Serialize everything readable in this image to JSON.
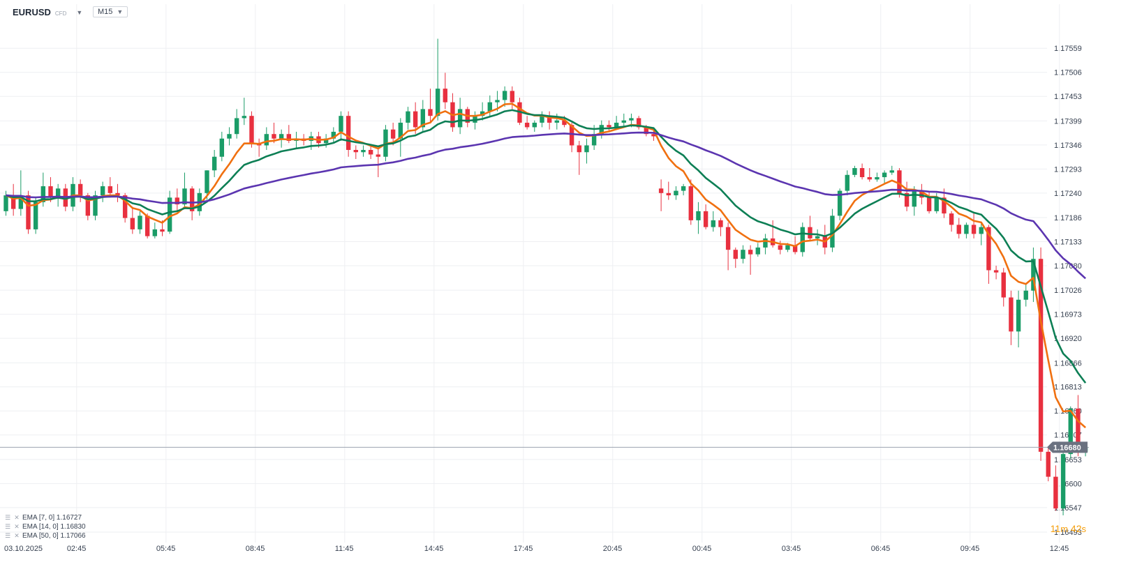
{
  "toolbar": {
    "symbol": "EURUSD",
    "symbol_type": "CFD",
    "timeframe": "M15"
  },
  "timer": {
    "minutes": "11",
    "min_unit": "m",
    "seconds": "42",
    "sec_unit": "s"
  },
  "colors": {
    "up": "#1a9c67",
    "down": "#e8303f",
    "ema7": "#f07010",
    "ema14": "#0d7f55",
    "ema50": "#5b35b0",
    "price_tag": "#6b7280"
  },
  "legend": [
    {
      "label": "EMA [7, 0] 1.16727"
    },
    {
      "label": "EMA [14, 0] 1.16830"
    },
    {
      "label": "EMA [50, 0] 1.17066"
    }
  ],
  "chart_data": {
    "type": "candlestick",
    "title": "",
    "xlabel": "",
    "ylabel": "",
    "ylim": [
      1.1647,
      1.1761
    ],
    "y_ticks": [
      1.16493,
      1.16547,
      1.166,
      1.16653,
      1.16707,
      1.1676,
      1.16813,
      1.16866,
      1.1692,
      1.16973,
      1.17026,
      1.1708,
      1.17133,
      1.17186,
      1.1724,
      1.17293,
      1.17346,
      1.17399,
      1.17453,
      1.17506,
      1.17559
    ],
    "x_ticks": [
      {
        "label": "03.10.2025",
        "i": -0.3
      },
      {
        "label": "02:45",
        "i": 9.5
      },
      {
        "label": "05:45",
        "i": 21.5
      },
      {
        "label": "08:45",
        "i": 33.5
      },
      {
        "label": "11:45",
        "i": 45.5
      },
      {
        "label": "14:45",
        "i": 57.5
      },
      {
        "label": "17:45",
        "i": 69.5
      },
      {
        "label": "20:45",
        "i": 81.5
      },
      {
        "label": "00:45",
        "i": 93.5
      },
      {
        "label": "03:45",
        "i": 105.5
      },
      {
        "label": "06:45",
        "i": 117.5
      },
      {
        "label": "09:45",
        "i": 129.5
      },
      {
        "label": "12:45",
        "i": 141.5
      }
    ],
    "last_price": 1.1668,
    "grid": true,
    "candles": [
      [
        1.172,
        1.17245,
        1.1719,
        1.17235
      ],
      [
        1.17235,
        1.1726,
        1.1719,
        1.17205
      ],
      [
        1.17205,
        1.1729,
        1.1719,
        1.17235
      ],
      [
        1.17235,
        1.17245,
        1.1715,
        1.1716
      ],
      [
        1.1716,
        1.1723,
        1.1715,
        1.1722
      ],
      [
        1.1722,
        1.17285,
        1.1721,
        1.17255
      ],
      [
        1.17255,
        1.17275,
        1.1722,
        1.1723
      ],
      [
        1.1723,
        1.1726,
        1.1721,
        1.1725
      ],
      [
        1.1725,
        1.1726,
        1.172,
        1.1721
      ],
      [
        1.1721,
        1.17275,
        1.172,
        1.1726
      ],
      [
        1.1726,
        1.1727,
        1.1722,
        1.17235
      ],
      [
        1.17235,
        1.1724,
        1.1718,
        1.1719
      ],
      [
        1.1719,
        1.17245,
        1.1718,
        1.17235
      ],
      [
        1.17235,
        1.17265,
        1.1722,
        1.17255
      ],
      [
        1.17255,
        1.17275,
        1.1723,
        1.1724
      ],
      [
        1.1724,
        1.1726,
        1.1722,
        1.17235
      ],
      [
        1.17235,
        1.1724,
        1.17175,
        1.17185
      ],
      [
        1.17185,
        1.1721,
        1.1715,
        1.1716
      ],
      [
        1.1716,
        1.172,
        1.1715,
        1.1719
      ],
      [
        1.1719,
        1.17195,
        1.1714,
        1.17145
      ],
      [
        1.17145,
        1.17175,
        1.1714,
        1.1716
      ],
      [
        1.1716,
        1.1718,
        1.17145,
        1.17155
      ],
      [
        1.17155,
        1.17245,
        1.1715,
        1.1723
      ],
      [
        1.1723,
        1.1725,
        1.172,
        1.17215
      ],
      [
        1.17215,
        1.17285,
        1.1721,
        1.1725
      ],
      [
        1.1725,
        1.17255,
        1.1718,
        1.172
      ],
      [
        1.172,
        1.1725,
        1.1719,
        1.1724
      ],
      [
        1.1724,
        1.1729,
        1.17225,
        1.1729
      ],
      [
        1.1729,
        1.17335,
        1.17275,
        1.1732
      ],
      [
        1.1732,
        1.17375,
        1.1731,
        1.1736
      ],
      [
        1.1736,
        1.17385,
        1.17345,
        1.1737
      ],
      [
        1.1737,
        1.17425,
        1.1736,
        1.17405
      ],
      [
        1.17405,
        1.1745,
        1.1739,
        1.1741
      ],
      [
        1.1741,
        1.1742,
        1.1734,
        1.1735
      ],
      [
        1.1735,
        1.1736,
        1.1732,
        1.17345
      ],
      [
        1.17345,
        1.17385,
        1.17335,
        1.1737
      ],
      [
        1.1737,
        1.17395,
        1.1735,
        1.1736
      ],
      [
        1.1736,
        1.1738,
        1.1734,
        1.1737
      ],
      [
        1.1737,
        1.1739,
        1.1735,
        1.17355
      ],
      [
        1.17355,
        1.17375,
        1.1734,
        1.1736
      ],
      [
        1.1736,
        1.1737,
        1.17345,
        1.17355
      ],
      [
        1.17355,
        1.17375,
        1.17335,
        1.17365
      ],
      [
        1.17365,
        1.17375,
        1.1734,
        1.1735
      ],
      [
        1.1735,
        1.1737,
        1.1734,
        1.1736
      ],
      [
        1.1736,
        1.17385,
        1.1735,
        1.17375
      ],
      [
        1.17375,
        1.1742,
        1.17355,
        1.1741
      ],
      [
        1.1741,
        1.1742,
        1.1732,
        1.17335
      ],
      [
        1.17335,
        1.17345,
        1.17315,
        1.1733
      ],
      [
        1.1733,
        1.17345,
        1.1732,
        1.17335
      ],
      [
        1.17335,
        1.17345,
        1.17315,
        1.17325
      ],
      [
        1.17325,
        1.1734,
        1.17275,
        1.1732
      ],
      [
        1.1732,
        1.1739,
        1.1731,
        1.1738
      ],
      [
        1.1738,
        1.17395,
        1.17345,
        1.1736
      ],
      [
        1.1736,
        1.17405,
        1.1732,
        1.17395
      ],
      [
        1.17395,
        1.1743,
        1.1738,
        1.1742
      ],
      [
        1.1742,
        1.1744,
        1.1737,
        1.17385
      ],
      [
        1.17385,
        1.17445,
        1.17375,
        1.17425
      ],
      [
        1.17425,
        1.1747,
        1.17395,
        1.1741
      ],
      [
        1.1741,
        1.1758,
        1.174,
        1.1747
      ],
      [
        1.1747,
        1.17505,
        1.17425,
        1.1744
      ],
      [
        1.1744,
        1.1746,
        1.17375,
        1.17385
      ],
      [
        1.17385,
        1.1745,
        1.1737,
        1.17425
      ],
      [
        1.17425,
        1.1743,
        1.17385,
        1.17395
      ],
      [
        1.17395,
        1.1742,
        1.1738,
        1.1741
      ],
      [
        1.1741,
        1.1744,
        1.174,
        1.1742
      ],
      [
        1.1742,
        1.17455,
        1.1741,
        1.1744
      ],
      [
        1.1744,
        1.17465,
        1.1742,
        1.17445
      ],
      [
        1.17445,
        1.17475,
        1.1743,
        1.17465
      ],
      [
        1.17465,
        1.17475,
        1.17425,
        1.1744
      ],
      [
        1.1744,
        1.1745,
        1.1739,
        1.17395
      ],
      [
        1.17395,
        1.1741,
        1.1738,
        1.17385
      ],
      [
        1.17385,
        1.174,
        1.17375,
        1.17395
      ],
      [
        1.17395,
        1.1742,
        1.17385,
        1.1741
      ],
      [
        1.1741,
        1.1742,
        1.1738,
        1.17395
      ],
      [
        1.17395,
        1.17415,
        1.1738,
        1.174
      ],
      [
        1.174,
        1.1741,
        1.17385,
        1.1739
      ],
      [
        1.1739,
        1.17395,
        1.1733,
        1.17345
      ],
      [
        1.17345,
        1.17355,
        1.1728,
        1.1733
      ],
      [
        1.1733,
        1.1736,
        1.17305,
        1.17345
      ],
      [
        1.17345,
        1.1739,
        1.17335,
        1.1737
      ],
      [
        1.1737,
        1.174,
        1.1736,
        1.1739
      ],
      [
        1.1739,
        1.174,
        1.17375,
        1.17385
      ],
      [
        1.17385,
        1.1741,
        1.1738,
        1.17395
      ],
      [
        1.17395,
        1.17415,
        1.17385,
        1.174
      ],
      [
        1.174,
        1.17415,
        1.17385,
        1.17405
      ],
      [
        1.17405,
        1.1741,
        1.1738,
        1.17385
      ],
      [
        1.17385,
        1.1739,
        1.17365,
        1.1737
      ],
      [
        1.1737,
        1.1738,
        1.17355,
        1.17365
      ],
      [
        1.1725,
        1.1727,
        1.172,
        1.1724
      ],
      [
        1.1724,
        1.17265,
        1.17225,
        1.17235
      ],
      [
        1.17235,
        1.17255,
        1.17225,
        1.17245
      ],
      [
        1.17245,
        1.1726,
        1.17235,
        1.17255
      ],
      [
        1.17255,
        1.1727,
        1.1717,
        1.1718
      ],
      [
        1.1718,
        1.1722,
        1.1715,
        1.172
      ],
      [
        1.172,
        1.17215,
        1.1716,
        1.17165
      ],
      [
        1.17165,
        1.172,
        1.17155,
        1.1718
      ],
      [
        1.1718,
        1.17185,
        1.17145,
        1.17165
      ],
      [
        1.17165,
        1.17175,
        1.1707,
        1.17115
      ],
      [
        1.17115,
        1.1712,
        1.17075,
        1.17095
      ],
      [
        1.17095,
        1.17125,
        1.17085,
        1.17115
      ],
      [
        1.17115,
        1.17125,
        1.1706,
        1.17105
      ],
      [
        1.17105,
        1.1713,
        1.171,
        1.1712
      ],
      [
        1.1712,
        1.1715,
        1.17105,
        1.1714
      ],
      [
        1.1714,
        1.1718,
        1.1712,
        1.17125
      ],
      [
        1.17125,
        1.17135,
        1.17105,
        1.17115
      ],
      [
        1.17115,
        1.1713,
        1.1711,
        1.17125
      ],
      [
        1.17125,
        1.17145,
        1.17105,
        1.1711
      ],
      [
        1.1711,
        1.17175,
        1.171,
        1.17165
      ],
      [
        1.17165,
        1.1719,
        1.17135,
        1.1714
      ],
      [
        1.1714,
        1.1716,
        1.17125,
        1.17145
      ],
      [
        1.17145,
        1.1717,
        1.17105,
        1.1712
      ],
      [
        1.1712,
        1.17205,
        1.1711,
        1.1719
      ],
      [
        1.1719,
        1.1725,
        1.1718,
        1.17245
      ],
      [
        1.17245,
        1.1729,
        1.17235,
        1.1728
      ],
      [
        1.1728,
        1.173,
        1.17275,
        1.17295
      ],
      [
        1.17295,
        1.17305,
        1.1727,
        1.17275
      ],
      [
        1.17275,
        1.17295,
        1.17265,
        1.1727
      ],
      [
        1.1727,
        1.17285,
        1.17265,
        1.17275
      ],
      [
        1.17275,
        1.1729,
        1.1726,
        1.17285
      ],
      [
        1.17285,
        1.173,
        1.1728,
        1.1729
      ],
      [
        1.1729,
        1.17295,
        1.1723,
        1.1724
      ],
      [
        1.1724,
        1.17265,
        1.172,
        1.1721
      ],
      [
        1.1721,
        1.17255,
        1.1719,
        1.17245
      ],
      [
        1.17245,
        1.1726,
        1.17215,
        1.1723
      ],
      [
        1.1723,
        1.17245,
        1.17195,
        1.172
      ],
      [
        1.172,
        1.1724,
        1.17195,
        1.1723
      ],
      [
        1.1723,
        1.1725,
        1.17185,
        1.17195
      ],
      [
        1.17195,
        1.172,
        1.17155,
        1.1717
      ],
      [
        1.1717,
        1.17185,
        1.1714,
        1.1715
      ],
      [
        1.1715,
        1.17175,
        1.1714,
        1.1717
      ],
      [
        1.1717,
        1.17195,
        1.1714,
        1.1715
      ],
      [
        1.1715,
        1.17175,
        1.17125,
        1.17165
      ],
      [
        1.17165,
        1.1717,
        1.1704,
        1.1707
      ],
      [
        1.1707,
        1.1708,
        1.1705,
        1.17065
      ],
      [
        1.17065,
        1.17075,
        1.1699,
        1.1701
      ],
      [
        1.1701,
        1.17025,
        1.16905,
        1.16935
      ],
      [
        1.16935,
        1.17025,
        1.169,
        1.17005
      ],
      [
        1.17005,
        1.1704,
        1.1699,
        1.17025
      ],
      [
        1.17025,
        1.1712,
        1.17,
        1.17095
      ],
      [
        1.17095,
        1.1712,
        1.1665,
        1.1667
      ],
      [
        1.1667,
        1.1668,
        1.16605,
        1.16615
      ],
      [
        1.16615,
        1.1664,
        1.1654,
        1.16545
      ],
      [
        1.16545,
        1.16675,
        1.1653,
        1.16665
      ],
      [
        1.16665,
        1.1677,
        1.16655,
        1.16765
      ],
      [
        1.16765,
        1.16795,
        1.1666,
        1.1667
      ],
      [
        1.1667,
        1.1669,
        1.1666,
        1.1668
      ]
    ],
    "series": [
      {
        "name": "EMA [7, 0]",
        "values": []
      },
      {
        "name": "EMA [14, 0]",
        "values": []
      },
      {
        "name": "EMA [50, 0]",
        "values": []
      }
    ]
  }
}
